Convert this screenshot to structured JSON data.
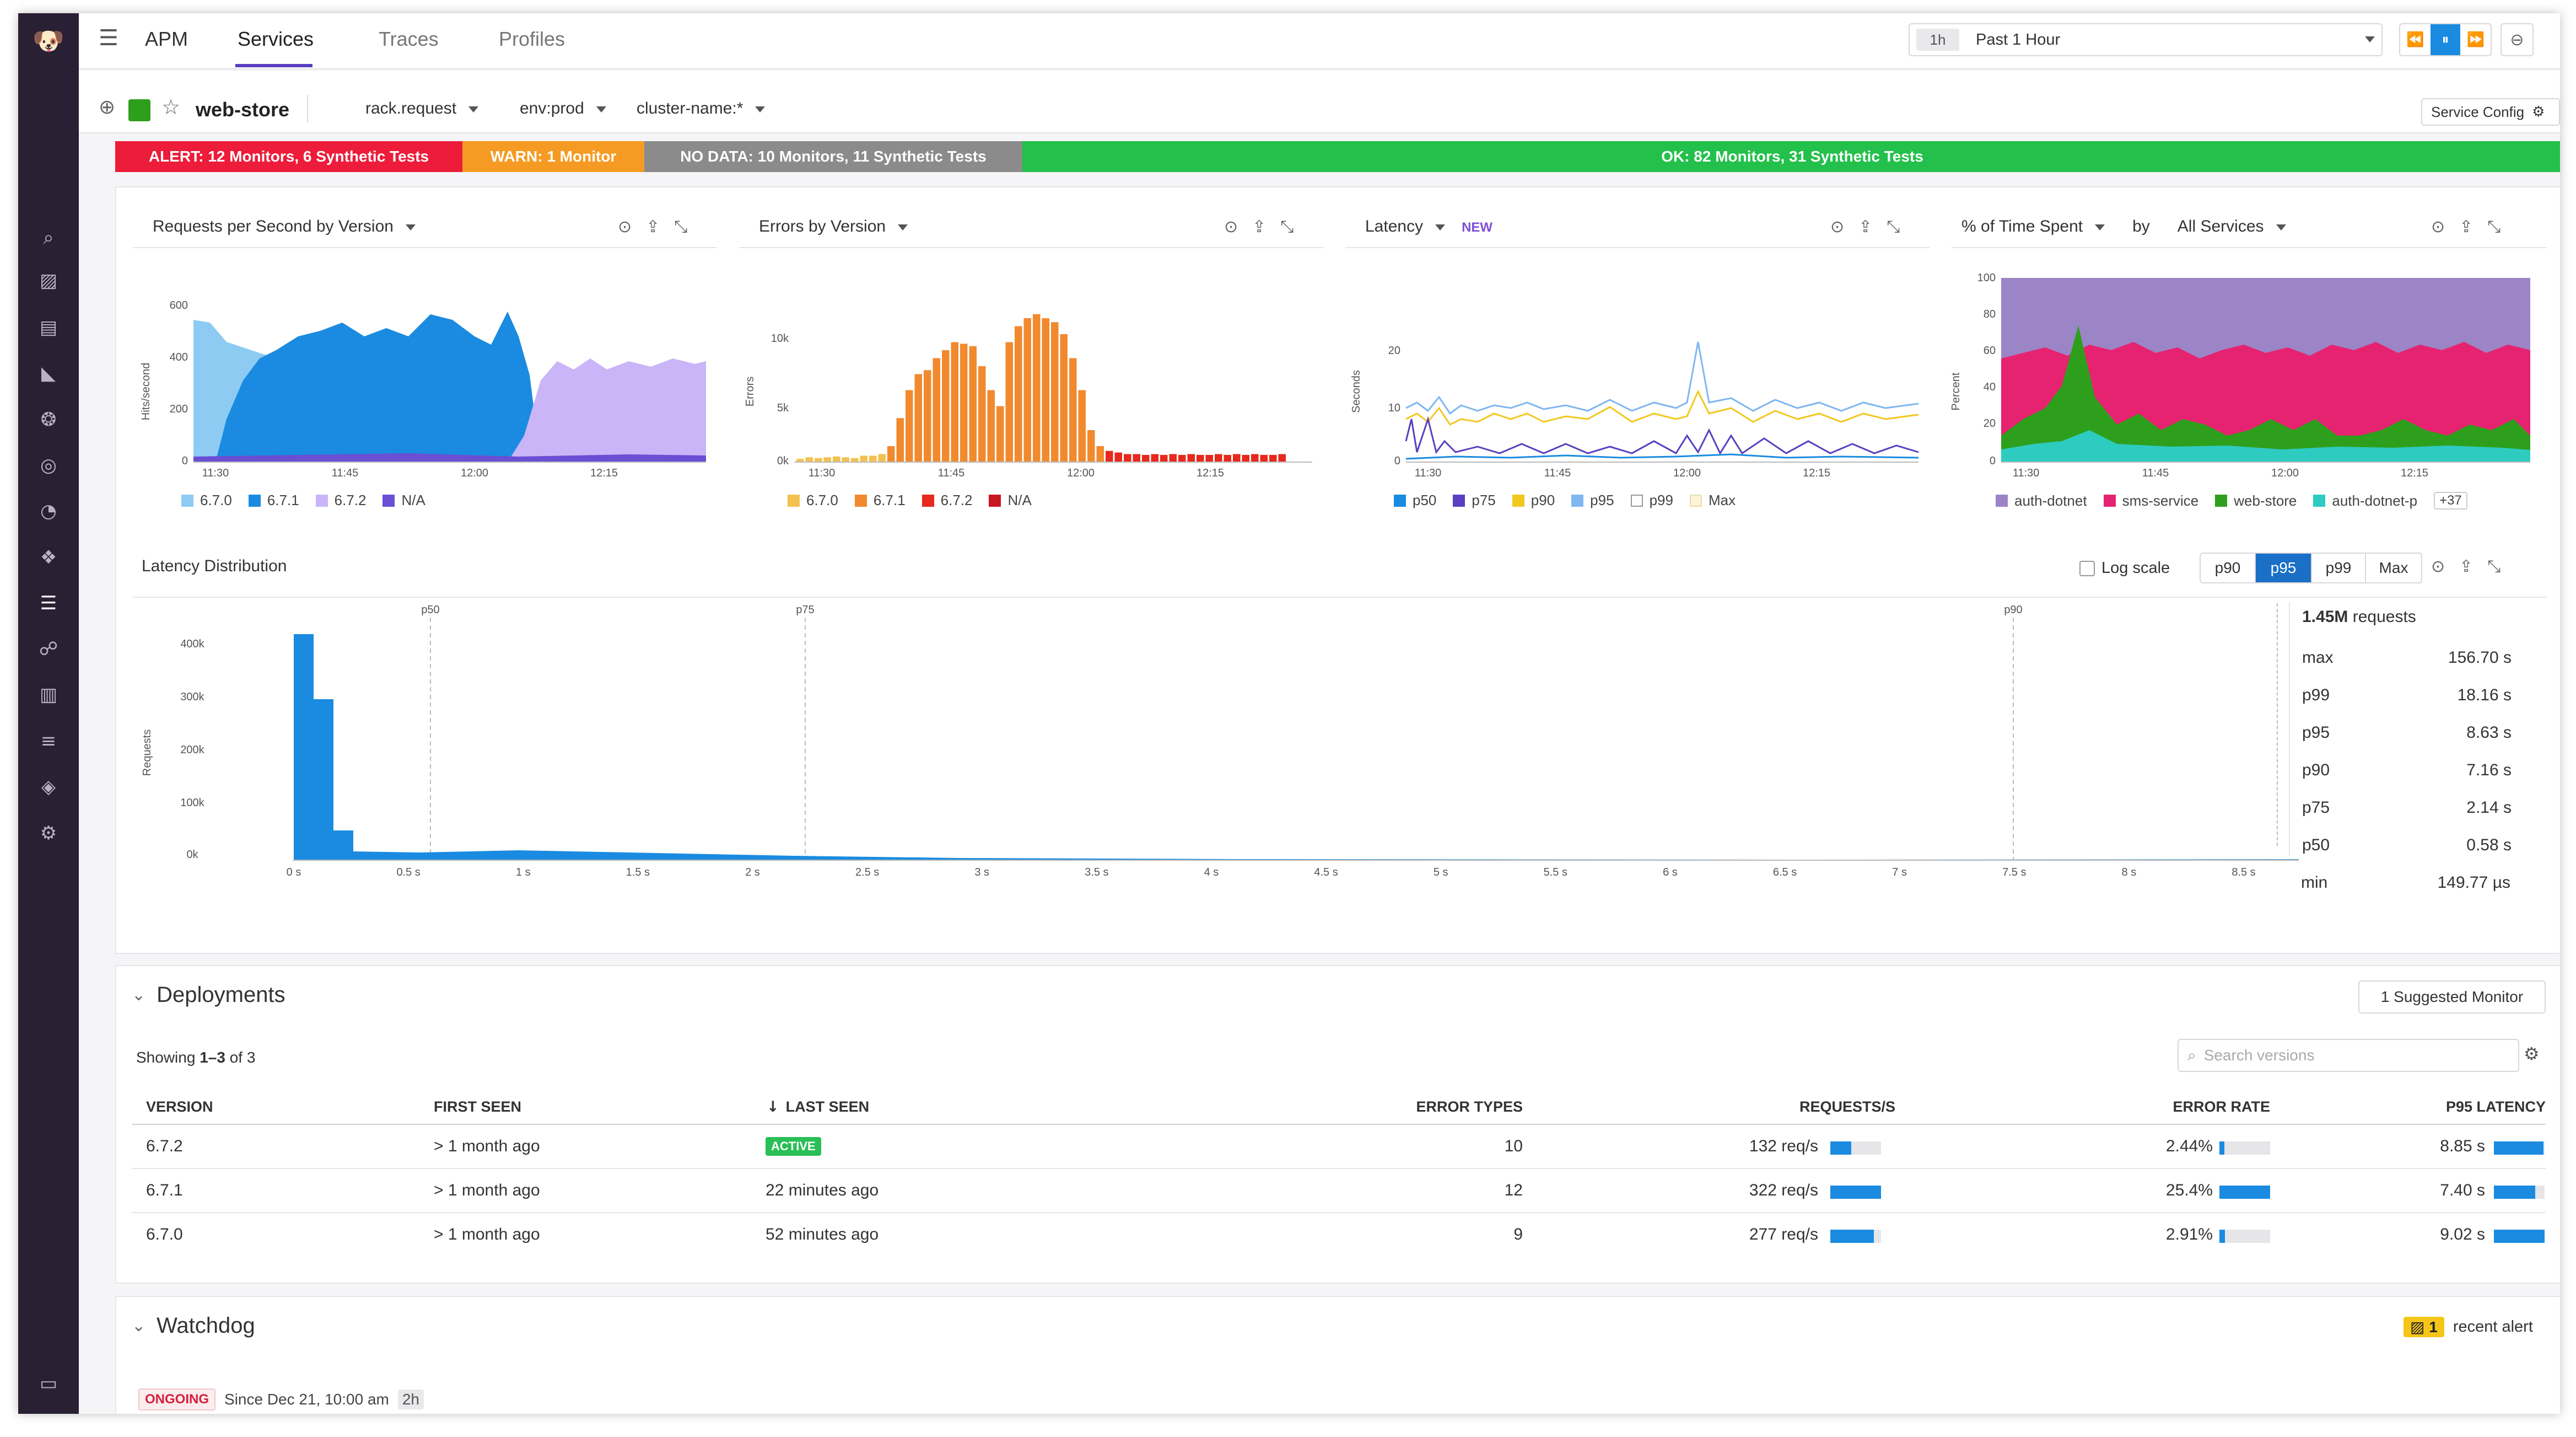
{
  "nav": {
    "app_title": "APM",
    "tabs": [
      "Services",
      "Traces",
      "Profiles"
    ]
  },
  "timepicker": {
    "short": "1h",
    "label": "Past 1 Hour"
  },
  "service": {
    "name": "web-store",
    "selectors": [
      "rack.request",
      "env:prod",
      "cluster-name:*"
    ],
    "config_button": "Service Config"
  },
  "status": {
    "alert": "ALERT: 12 Monitors, 6 Synthetic Tests",
    "warn": "WARN: 1 Monitor",
    "nodata": "NO DATA: 10 Monitors, 11 Synthetic Tests",
    "ok": "OK: 82 Monitors, 31 Synthetic Tests",
    "colors": {
      "alert": "#ec1c3a",
      "warn": "#f59b23",
      "nodata": "#8b8b8b",
      "ok": "#23c04b"
    }
  },
  "charts": {
    "rps": {
      "title": "Requests per Second by Version",
      "ylabel": "Hits/second",
      "yticks": [
        "600",
        "400",
        "200",
        "0"
      ],
      "xticks": [
        "11:30",
        "11:45",
        "12:00",
        "12:15"
      ],
      "legend": [
        "6.7.0",
        "6.7.1",
        "6.7.2",
        "N/A"
      ],
      "colors": [
        "#8ecbf3",
        "#1a8be0",
        "#c9b5f7",
        "#6a4ed4"
      ]
    },
    "errors": {
      "title": "Errors by Version",
      "ylabel": "Errors",
      "yticks": [
        "10k",
        "5k",
        "0k"
      ],
      "xticks": [
        "11:30",
        "11:45",
        "12:00",
        "12:15"
      ],
      "legend": [
        "6.7.0",
        "6.7.1",
        "6.7.2",
        "N/A"
      ],
      "colors": [
        "#f2c14e",
        "#f18a2e",
        "#e8281c",
        "#c81720"
      ]
    },
    "latency": {
      "title": "Latency",
      "badge": "NEW",
      "ylabel": "Seconds",
      "yticks": [
        "20",
        "10",
        "0"
      ],
      "xticks": [
        "11:30",
        "11:45",
        "12:00",
        "12:15"
      ],
      "legend": [
        "p50",
        "p75",
        "p90",
        "p95",
        "p99",
        "Max"
      ],
      "colors": [
        "#1a8be0",
        "#5a3fc0",
        "#f2c81f",
        "#7fb7f0",
        "#ffffff",
        "#fdf3d8"
      ]
    },
    "time_spent": {
      "title": "% of Time Spent",
      "by_label": "by",
      "scope": "All Services",
      "ylabel": "Percent",
      "yticks": [
        "100",
        "80",
        "60",
        "40",
        "20",
        "0"
      ],
      "xticks": [
        "11:30",
        "11:45",
        "12:00",
        "12:15"
      ],
      "legend": [
        "auth-dotnet",
        "sms-service",
        "web-store",
        "auth-dotnet-p"
      ],
      "more": "+37",
      "colors": [
        "#9b85c6",
        "#e62370",
        "#2e9f1c",
        "#2ecbc0"
      ]
    }
  },
  "latency_dist": {
    "title": "Latency Distribution",
    "log_scale": "Log scale",
    "pbuttons": [
      "p90",
      "p95",
      "p99",
      "Max"
    ],
    "active": "p95",
    "markers": [
      "p50",
      "p75",
      "p90",
      "p95"
    ],
    "yticks": [
      "400k",
      "300k",
      "200k",
      "100k",
      "0k"
    ],
    "ylabel": "Requests",
    "xticks": [
      "0 s",
      "0.5 s",
      "1 s",
      "1.5 s",
      "2 s",
      "2.5 s",
      "3 s",
      "3.5 s",
      "4 s",
      "4.5 s",
      "5 s",
      "5.5 s",
      "6 s",
      "6.5 s",
      "7 s",
      "7.5 s",
      "8 s",
      "8.5 s"
    ],
    "total_value": "1.45M",
    "total_label": "requests",
    "stats": [
      {
        "label": "max",
        "value": "156.70 s"
      },
      {
        "label": "p99",
        "value": "18.16 s"
      },
      {
        "label": "p95",
        "value": "8.63 s"
      },
      {
        "label": "p90",
        "value": "7.16 s"
      },
      {
        "label": "p75",
        "value": "2.14 s"
      },
      {
        "label": "p50",
        "value": "0.58 s"
      },
      {
        "label": "min",
        "value": "149.77 µs"
      }
    ]
  },
  "deployments": {
    "title": "Deployments",
    "suggested": "1 Suggested Monitor",
    "showing_prefix": "Showing",
    "showing_range": "1–3",
    "showing_suffix": "of 3",
    "search_placeholder": "Search versions",
    "columns": [
      "VERSION",
      "FIRST SEEN",
      "LAST SEEN",
      "ERROR TYPES",
      "REQUESTS/S",
      "ERROR RATE",
      "P95 LATENCY"
    ],
    "rows": [
      {
        "version": "6.7.2",
        "first_seen": "> 1 month ago",
        "last_seen": "ACTIVE",
        "error_types": "10",
        "requests": "132 req/s",
        "requests_frac": 0.41,
        "error_rate": "2.44%",
        "error_frac": 0.1,
        "p95": "8.85 s",
        "p95_frac": 0.98
      },
      {
        "version": "6.7.1",
        "first_seen": "> 1 month ago",
        "last_seen": "22 minutes ago",
        "error_types": "12",
        "requests": "322 req/s",
        "requests_frac": 1.0,
        "error_rate": "25.4%",
        "error_frac": 1.0,
        "p95": "7.40 s",
        "p95_frac": 0.82
      },
      {
        "version": "6.7.0",
        "first_seen": "> 1 month ago",
        "last_seen": "52 minutes ago",
        "error_types": "9",
        "requests": "277 req/s",
        "requests_frac": 0.86,
        "error_rate": "2.91%",
        "error_frac": 0.11,
        "p95": "9.02 s",
        "p95_frac": 1.0
      }
    ]
  },
  "watchdog": {
    "title": "Watchdog",
    "alert_count": "1",
    "alert_label": "recent alert",
    "status": "ONGOING",
    "since": "Since Dec 21, 10:00 am",
    "duration": "2h"
  }
}
